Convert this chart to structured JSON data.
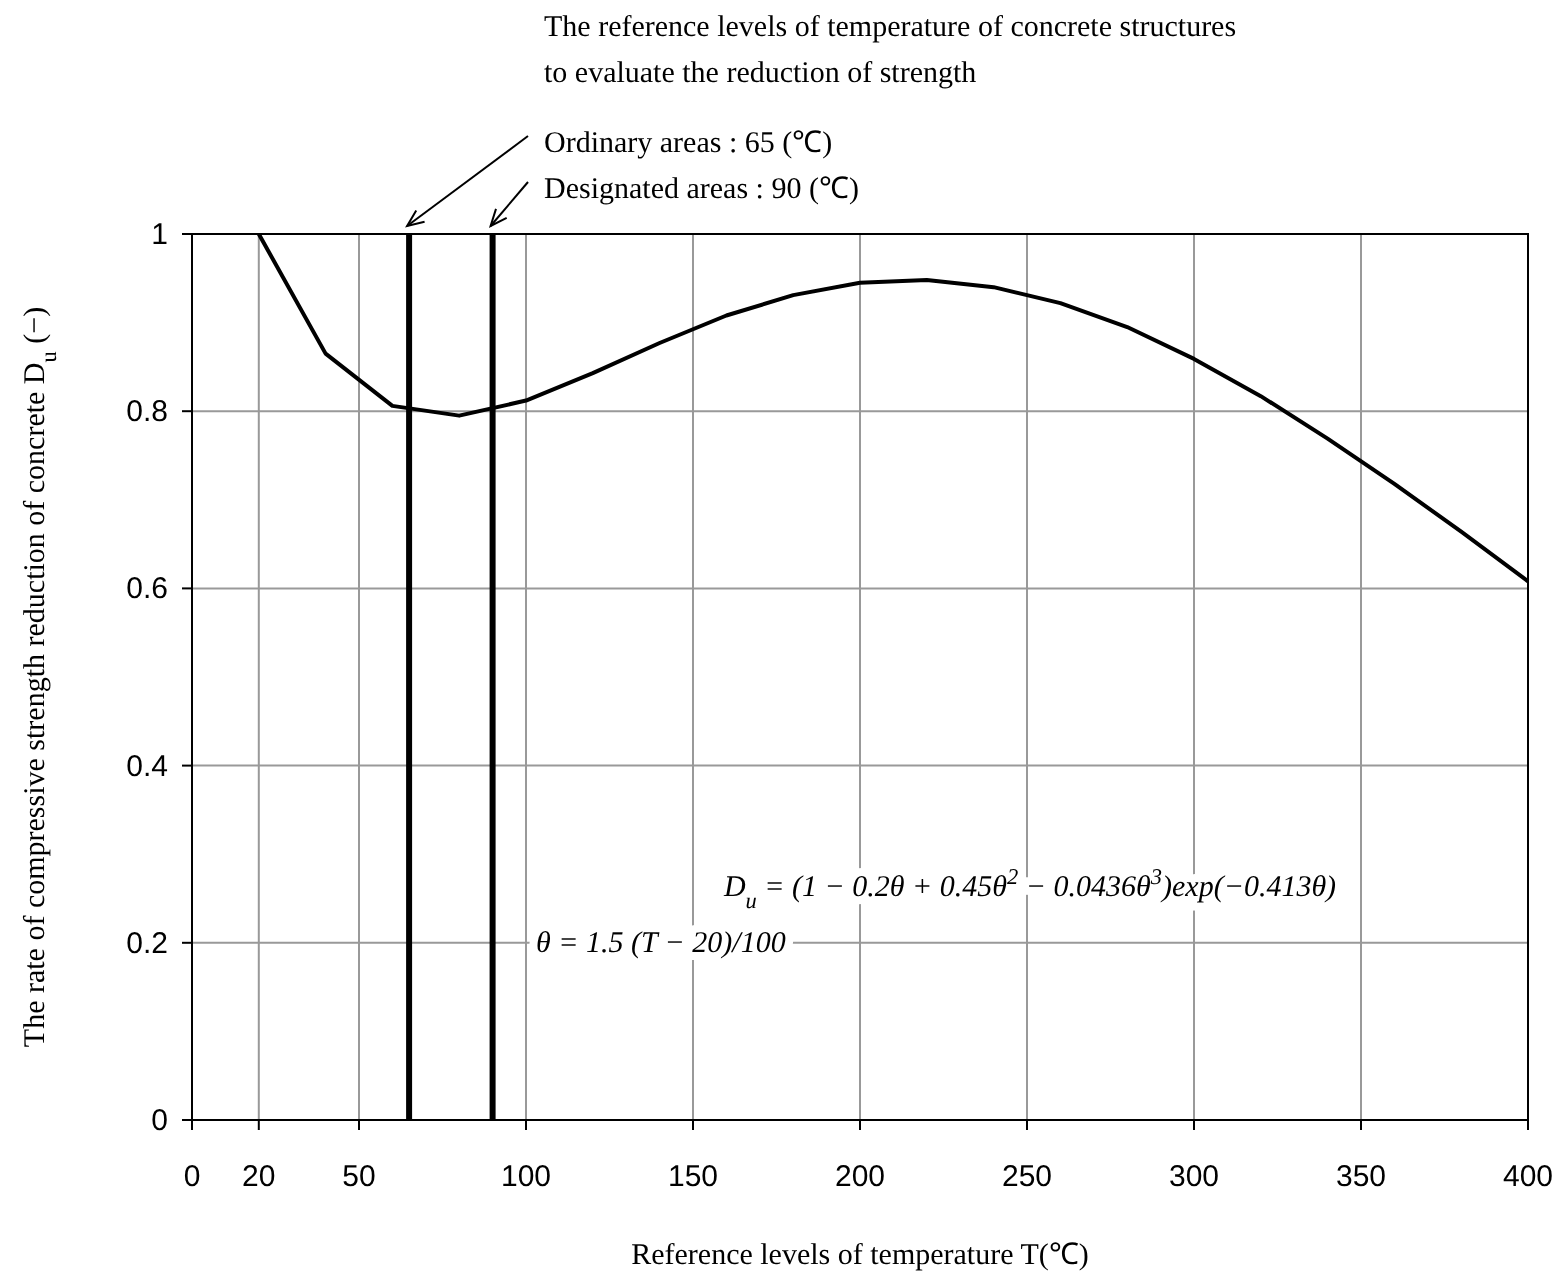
{
  "chart_data": {
    "type": "line",
    "title": "The reference levels of temperature of concrete structures\nto evaluate the reduction of strength",
    "xlabel": "Reference levels of temperature T(℃)",
    "ylabel": "The rate of compressive strength reduction of concrete D$_{u}$ (−)",
    "x": [
      20,
      40,
      60,
      80,
      100,
      120,
      140,
      160,
      180,
      200,
      220,
      240,
      260,
      280,
      300,
      320,
      340,
      360,
      380,
      400
    ],
    "series": [
      {
        "color": "#000000",
        "values": [
          1,
          0.865,
          0.806,
          0.795,
          0.812,
          0.843,
          0.877,
          0.908,
          0.931,
          0.945,
          0.948,
          0.94,
          0.922,
          0.895,
          0.859,
          0.817,
          0.769,
          0.718,
          0.664,
          0.608
        ]
      }
    ],
    "xlim": [
      0,
      400
    ],
    "xticks": [
      0,
      20,
      50,
      100,
      150,
      200,
      250,
      300,
      350,
      400
    ],
    "ylim": [
      0,
      1
    ],
    "yticks": [
      0,
      0.2,
      0.4,
      0.6,
      0.8,
      1
    ],
    "grid": true,
    "ref_lines": [
      {
        "axis": "x",
        "value": 65,
        "label": "Ordinary areas : 65 (℃)",
        "color": "#000000"
      },
      {
        "axis": "x",
        "value": 90,
        "label": "Designated areas : 90 (℃)",
        "color": "#000000"
      }
    ],
    "annotations": [
      "D$_{u}$ = (1 − 0.2θ + 0.45θ$^{2}$ − 0.0436θ$^{3}$)exp(−0.413θ)",
      "θ = 1.5 (T − 20)/100"
    ]
  }
}
